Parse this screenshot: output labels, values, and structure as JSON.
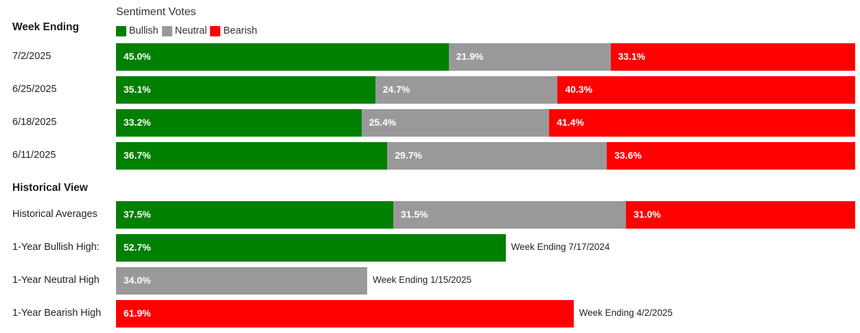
{
  "legend_title": "Sentiment Votes",
  "legend": [
    {
      "key": "bullish",
      "label": "Bullish",
      "color": "#008000"
    },
    {
      "key": "neutral",
      "label": "Neutral",
      "color": "#999999"
    },
    {
      "key": "bearish",
      "label": "Bearish",
      "color": "#ff0000"
    }
  ],
  "sections": {
    "weekly_header": "Week Ending",
    "historical_header": "Historical View"
  },
  "chart_data": {
    "type": "bar",
    "orientation": "horizontal",
    "stacked": true,
    "scale_max_percent": 100,
    "weekly": [
      {
        "label": "7/2/2025",
        "values": [
          {
            "series": "bullish",
            "value": 45.0,
            "text": "45.0%"
          },
          {
            "series": "neutral",
            "value": 21.9,
            "text": "21.9%"
          },
          {
            "series": "bearish",
            "value": 33.1,
            "text": "33.1%"
          }
        ]
      },
      {
        "label": "6/25/2025",
        "values": [
          {
            "series": "bullish",
            "value": 35.1,
            "text": "35.1%"
          },
          {
            "series": "neutral",
            "value": 24.7,
            "text": "24.7%"
          },
          {
            "series": "bearish",
            "value": 40.3,
            "text": "40.3%"
          }
        ]
      },
      {
        "label": "6/18/2025",
        "values": [
          {
            "series": "bullish",
            "value": 33.2,
            "text": "33.2%"
          },
          {
            "series": "neutral",
            "value": 25.4,
            "text": "25.4%"
          },
          {
            "series": "bearish",
            "value": 41.4,
            "text": "41.4%"
          }
        ]
      },
      {
        "label": "6/11/2025",
        "values": [
          {
            "series": "bullish",
            "value": 36.7,
            "text": "36.7%"
          },
          {
            "series": "neutral",
            "value": 29.7,
            "text": "29.7%"
          },
          {
            "series": "bearish",
            "value": 33.6,
            "text": "33.6%"
          }
        ]
      }
    ],
    "historical": [
      {
        "label": "Historical Averages",
        "values": [
          {
            "series": "bullish",
            "value": 37.5,
            "text": "37.5%"
          },
          {
            "series": "neutral",
            "value": 31.5,
            "text": "31.5%"
          },
          {
            "series": "bearish",
            "value": 31.0,
            "text": "31.0%"
          }
        ]
      },
      {
        "label": "1-Year Bullish High:",
        "values": [
          {
            "series": "bullish",
            "value": 52.7,
            "text": "52.7%"
          }
        ],
        "note": "Week Ending 7/17/2024"
      },
      {
        "label": "1-Year Neutral High",
        "values": [
          {
            "series": "neutral",
            "value": 34.0,
            "text": "34.0%"
          }
        ],
        "note": "Week Ending 1/15/2025"
      },
      {
        "label": "1-Year Bearish High",
        "values": [
          {
            "series": "bearish",
            "value": 61.9,
            "text": "61.9%"
          }
        ],
        "note": "Week Ending 4/2/2025"
      }
    ]
  }
}
